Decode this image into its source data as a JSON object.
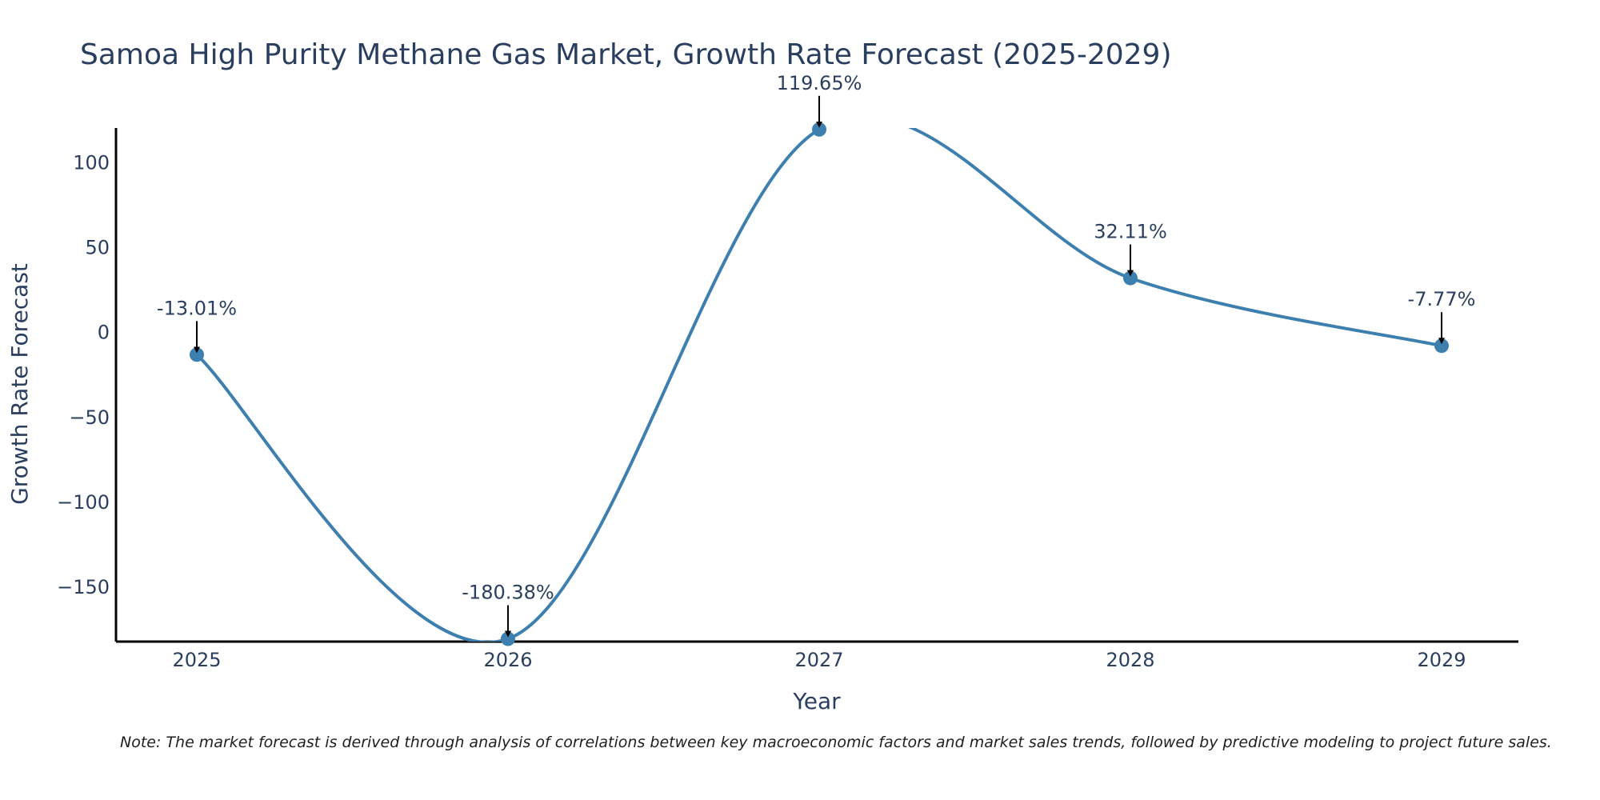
{
  "chart_data": {
    "type": "line",
    "title": "Samoa High Purity Methane Gas Market, Growth Rate Forecast (2025-2029)",
    "xlabel": "Year",
    "ylabel": "Growth Rate Forecast",
    "categories": [
      "2025",
      "2026",
      "2027",
      "2028",
      "2029"
    ],
    "series": [
      {
        "name": "Growth Rate Forecast",
        "values": [
          -13.01,
          -180.38,
          119.65,
          32.11,
          -7.77
        ]
      }
    ],
    "annotations": [
      "-13.01%",
      "-180.38%",
      "119.65%",
      "32.11%",
      "-7.77%"
    ],
    "y_ticks": [
      100,
      50,
      0,
      -50,
      -100,
      -150
    ],
    "y_tick_labels": [
      "100",
      "50",
      "0",
      "−50",
      "−100",
      "−150"
    ],
    "ylim": [
      -182,
      120.5
    ],
    "line_color": "#3d7fae",
    "marker_color": "#3d7fae",
    "arrow_color": "#000000",
    "grid": false
  },
  "note": "Note: The market forecast is derived through analysis of correlations between key macroeconomic factors and market sales trends, followed by predictive modeling to project future sales."
}
